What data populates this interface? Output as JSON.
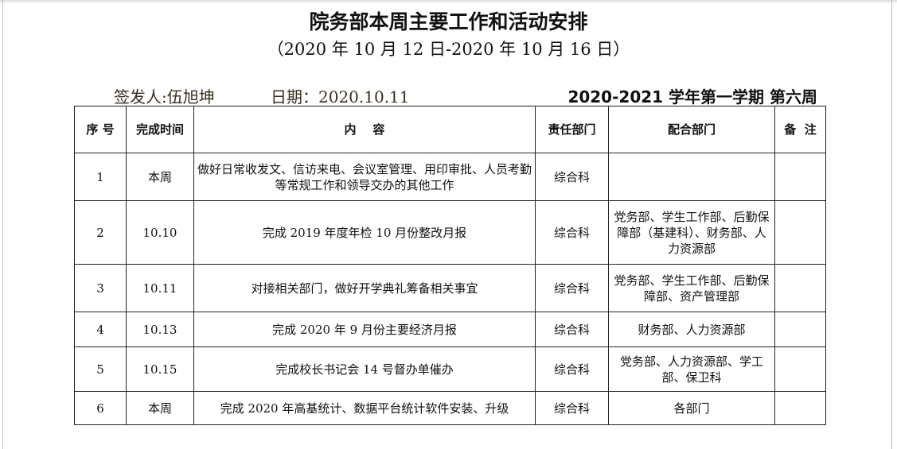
{
  "title": "院务部本周主要工作和活动安排",
  "subtitle": "（2020 年 10 月 12 日-2020 年 10 月 16 日）",
  "signer": "签发人:伍旭坤",
  "date": "日期：2020.10.11",
  "term": "2020-2021 学年第一学期  第六周",
  "headers": {
    "no": "序 号",
    "time": "完成时间",
    "content": "内    容",
    "dept": "责任部门",
    "coop": "配合部门",
    "note": "备  注"
  },
  "rows": [
    {
      "no": "1",
      "time": "本周",
      "content": "做好日常收发文、信访来电、会议室管理、用印审批、人员考勤等常规工作和领导交办的其他工作",
      "dept": "综合科",
      "coop": "",
      "note": ""
    },
    {
      "no": "2",
      "time": "10.10",
      "content": "完成 2019 年度年检 10 月份整改月报",
      "dept": "综合科",
      "coop": "党务部、学生工作部、后勤保障部（基建科）、财务部、人力资源部",
      "note": ""
    },
    {
      "no": "3",
      "time": "10.11",
      "content": "对接相关部门，做好开学典礼筹备相关事宜",
      "dept": "综合科",
      "coop": "党务部、学生工作部、后勤保障部、资产管理部",
      "note": ""
    },
    {
      "no": "4",
      "time": "10.13",
      "content": "完成 2020 年 9 月份主要经济月报",
      "dept": "综合科",
      "coop": "财务部、人力资源部",
      "note": ""
    },
    {
      "no": "5",
      "time": "10.15",
      "content": "完成校长书记会 14 号督办单催办",
      "dept": "综合科",
      "coop": "党务部、人力资源部、学工部、保卫科",
      "note": ""
    },
    {
      "no": "6",
      "time": "本周",
      "content": "完成 2020 年高基统计、数据平台统计软件安装、升级",
      "dept": "综合科",
      "coop": "各部门",
      "note": ""
    }
  ]
}
